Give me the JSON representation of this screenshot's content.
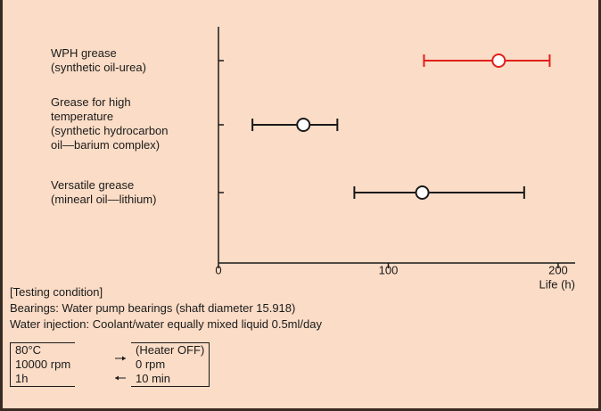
{
  "chart_data": {
    "type": "errorbar",
    "categories": [
      "WPH grease\n(synthetic oil-urea)",
      "Grease for high\ntemperature\n(synthetic hydrocarbon\noil—barium complex)",
      "Versatile grease\n(minearl oil—lithium)"
    ],
    "values": [
      165,
      50,
      120
    ],
    "low": [
      121,
      20,
      80
    ],
    "high": [
      195,
      70,
      180
    ],
    "colors": [
      "#e0201c",
      "#1a1a1a",
      "#1a1a1a"
    ],
    "xlim": [
      0,
      210
    ],
    "xticks": [
      0,
      100,
      200
    ],
    "xlabel": "Life (h)",
    "notes": [
      "[Testing condition]",
      "Bearings: Water pump bearings (shaft diameter 15.918)",
      "Water injection: Coolant/water equally mixed liquid 0.5ml/day"
    ],
    "conditions": {
      "left": [
        "80°C",
        "10000 rpm",
        "1h"
      ],
      "right": [
        "(Heater OFF)",
        "0 rpm",
        "10 min"
      ]
    }
  }
}
